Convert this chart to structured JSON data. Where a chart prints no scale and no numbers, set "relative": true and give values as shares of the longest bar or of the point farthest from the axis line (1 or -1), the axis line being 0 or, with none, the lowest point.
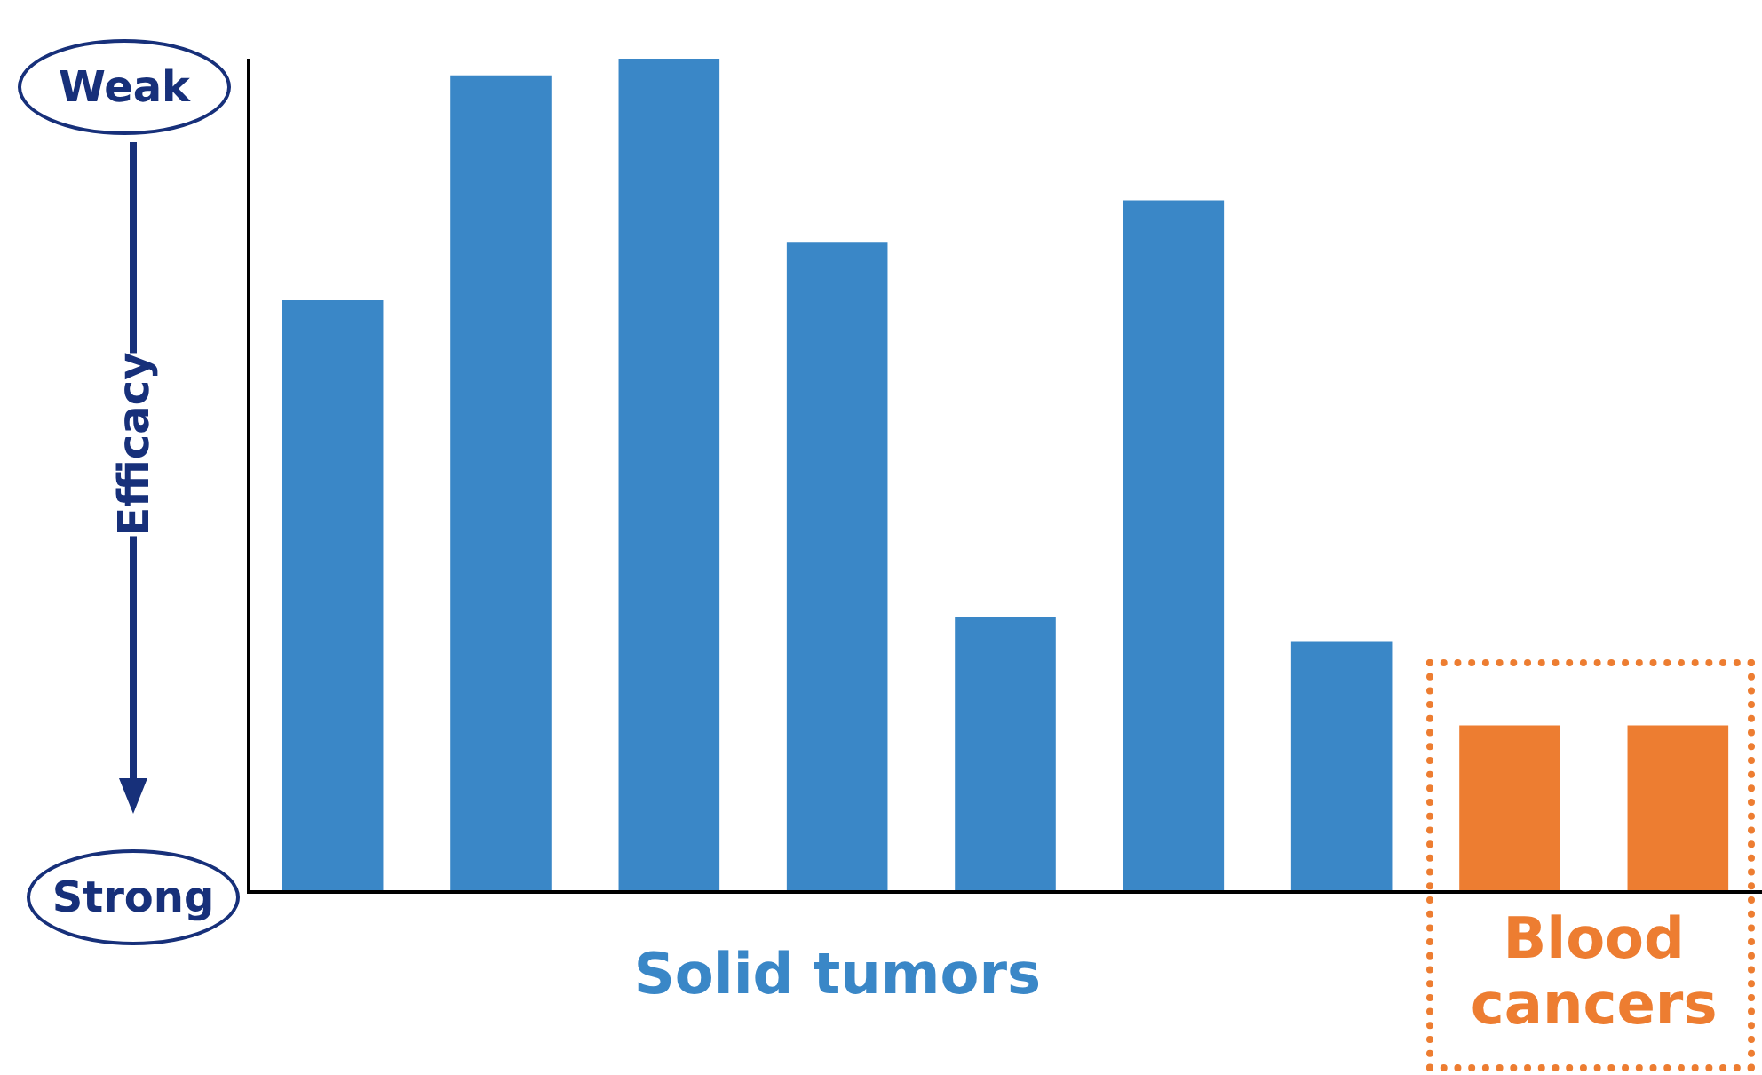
{
  "chart_data": {
    "type": "bar",
    "relative": true,
    "ylabel": "Efficacy",
    "categories": [
      null,
      null,
      null,
      null,
      null,
      null,
      null,
      null,
      null
    ],
    "values": [
      0.71,
      0.98,
      1,
      0.78,
      0.33,
      0.83,
      0.3,
      0.2,
      0.2
    ],
    "colors": [
      "#3a87c7",
      "#3a87c7",
      "#3a87c7",
      "#3a87c7",
      "#3a87c7",
      "#3a87c7",
      "#3a87c7",
      "#ed7d31",
      "#ed7d31"
    ],
    "annotations": [
      "Weak",
      "Strong",
      "Solid tumors",
      "Blood cancers"
    ],
    "grid": false,
    "legend": false
  }
}
